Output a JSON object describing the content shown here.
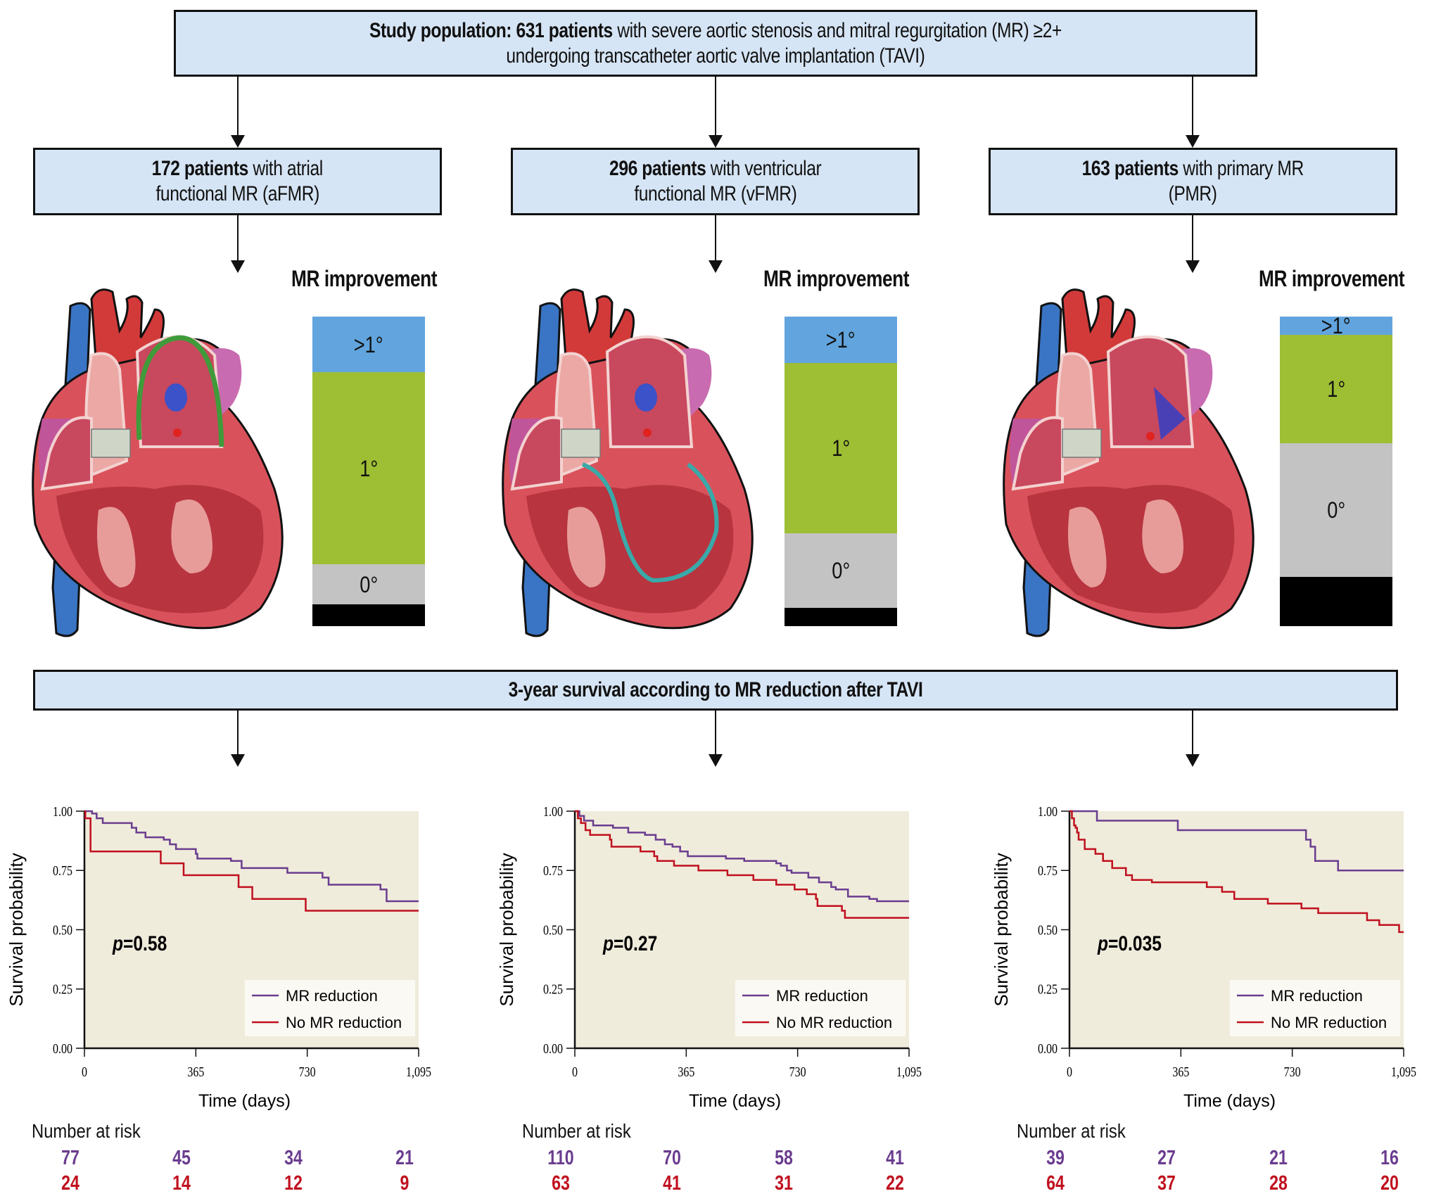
{
  "header": {
    "bold": "Study population: 631 patients",
    "rest_line1": " with severe aortic stenosis and mitral regurgitation (MR) ≥2+",
    "line2": "undergoing transcatheter aortic valve implantation (TAVI)"
  },
  "groups": [
    {
      "bold": "172 patients",
      "rest": " with atrial",
      "line2": "functional MR (aFMR)",
      "key": "aFMR"
    },
    {
      "bold": "296 patients",
      "rest": " with ventricular",
      "line2": "functional MR (vFMR)",
      "key": "vFMR"
    },
    {
      "bold": "163 patients",
      "rest": " with primary MR",
      "line2": "(PMR)",
      "key": "PMR"
    }
  ],
  "mr_improvement": {
    "title": "MR improvement",
    "colors": {
      "gt1": "#62a5de",
      "one": "#9ebe34",
      "zero": "#c3c3c3",
      "worse": "#000000"
    },
    "bars": [
      {
        "group": "aFMR",
        "segments": [
          {
            "label": ">1°",
            "fraction": 0.18,
            "color_key": "gt1"
          },
          {
            "label": "1°",
            "fraction": 0.62,
            "color_key": "one"
          },
          {
            "label": "0°",
            "fraction": 0.13,
            "color_key": "zero"
          },
          {
            "label": "",
            "fraction": 0.07,
            "color_key": "worse"
          }
        ]
      },
      {
        "group": "vFMR",
        "segments": [
          {
            "label": ">1°",
            "fraction": 0.15,
            "color_key": "gt1"
          },
          {
            "label": "1°",
            "fraction": 0.55,
            "color_key": "one"
          },
          {
            "label": "0°",
            "fraction": 0.24,
            "color_key": "zero"
          },
          {
            "label": "",
            "fraction": 0.06,
            "color_key": "worse"
          }
        ]
      },
      {
        "group": "PMR",
        "segments": [
          {
            "label": ">1°",
            "fraction": 0.06,
            "color_key": "gt1"
          },
          {
            "label": "1°",
            "fraction": 0.35,
            "color_key": "one"
          },
          {
            "label": "0°",
            "fraction": 0.43,
            "color_key": "zero"
          },
          {
            "label": "",
            "fraction": 0.16,
            "color_key": "worse"
          }
        ]
      }
    ]
  },
  "survival_header": "3-year survival according to MR reduction after TAVI",
  "chart_data": [
    {
      "type": "line",
      "group": "aFMR",
      "ylabel": "Survival probability",
      "xlabel": "Time (days)",
      "xlim": [
        0,
        1095
      ],
      "ylim": [
        0,
        1
      ],
      "xticks": [
        "0",
        "365",
        "730",
        "1,095"
      ],
      "xtick_values": [
        0,
        365,
        730,
        1095
      ],
      "yticks": [
        "0.00",
        "0.25",
        "0.50",
        "0.75",
        "1.00"
      ],
      "ytick_values": [
        0,
        0.25,
        0.5,
        0.75,
        1
      ],
      "annotation": {
        "p_label": "p",
        "p_value": "=0.58"
      },
      "legend": {
        "position": "bottom-right",
        "entries": [
          "MR reduction",
          "No MR reduction"
        ]
      },
      "series": [
        {
          "name": "MR reduction",
          "color": "#6a3d8f",
          "steps": [
            [
              0,
              1.0
            ],
            [
              25,
              0.99
            ],
            [
              40,
              0.97
            ],
            [
              60,
              0.95
            ],
            [
              155,
              0.93
            ],
            [
              170,
              0.91
            ],
            [
              200,
              0.89
            ],
            [
              260,
              0.88
            ],
            [
              280,
              0.86
            ],
            [
              300,
              0.84
            ],
            [
              365,
              0.82
            ],
            [
              370,
              0.8
            ],
            [
              480,
              0.79
            ],
            [
              515,
              0.76
            ],
            [
              665,
              0.74
            ],
            [
              780,
              0.72
            ],
            [
              800,
              0.69
            ],
            [
              970,
              0.67
            ],
            [
              990,
              0.62
            ],
            [
              1095,
              0.62
            ]
          ]
        },
        {
          "name": "No MR reduction",
          "color": "#c0101e",
          "steps": [
            [
              0,
              1.0
            ],
            [
              3,
              0.97
            ],
            [
              20,
              0.83
            ],
            [
              250,
              0.78
            ],
            [
              325,
              0.73
            ],
            [
              505,
              0.68
            ],
            [
              550,
              0.63
            ],
            [
              725,
              0.58
            ],
            [
              1095,
              0.58
            ]
          ]
        }
      ],
      "risk_table": {
        "title": "Number at risk",
        "rows": [
          {
            "name": "MR reduction",
            "color": "#6a3d8f",
            "values": [
              "77",
              "45",
              "34",
              "21"
            ]
          },
          {
            "name": "No MR reduction",
            "color": "#c0101e",
            "values": [
              "24",
              "14",
              "12",
              "9"
            ]
          }
        ]
      }
    },
    {
      "type": "line",
      "group": "vFMR",
      "ylabel": "Survival probability",
      "xlabel": "Time (days)",
      "xlim": [
        0,
        1095
      ],
      "ylim": [
        0,
        1
      ],
      "xticks": [
        "0",
        "365",
        "730",
        "1,095"
      ],
      "xtick_values": [
        0,
        365,
        730,
        1095
      ],
      "yticks": [
        "0.00",
        "0.25",
        "0.50",
        "0.75",
        "1.00"
      ],
      "ytick_values": [
        0,
        0.25,
        0.5,
        0.75,
        1
      ],
      "annotation": {
        "p_label": "p",
        "p_value": "=0.27"
      },
      "legend": {
        "position": "bottom-right",
        "entries": [
          "MR reduction",
          "No MR reduction"
        ]
      },
      "series": [
        {
          "name": "MR reduction",
          "color": "#6a3d8f",
          "steps": [
            [
              0,
              1.0
            ],
            [
              15,
              0.98
            ],
            [
              30,
              0.96
            ],
            [
              60,
              0.94
            ],
            [
              125,
              0.93
            ],
            [
              175,
              0.91
            ],
            [
              230,
              0.9
            ],
            [
              265,
              0.88
            ],
            [
              295,
              0.86
            ],
            [
              320,
              0.85
            ],
            [
              345,
              0.83
            ],
            [
              370,
              0.81
            ],
            [
              495,
              0.8
            ],
            [
              555,
              0.79
            ],
            [
              660,
              0.78
            ],
            [
              675,
              0.77
            ],
            [
              695,
              0.75
            ],
            [
              710,
              0.74
            ],
            [
              765,
              0.72
            ],
            [
              800,
              0.7
            ],
            [
              840,
              0.68
            ],
            [
              855,
              0.67
            ],
            [
              895,
              0.64
            ],
            [
              965,
              0.63
            ],
            [
              990,
              0.62
            ],
            [
              1095,
              0.62
            ]
          ]
        },
        {
          "name": "No MR reduction",
          "color": "#c0101e",
          "steps": [
            [
              0,
              1.0
            ],
            [
              10,
              0.97
            ],
            [
              20,
              0.95
            ],
            [
              35,
              0.92
            ],
            [
              50,
              0.9
            ],
            [
              115,
              0.88
            ],
            [
              120,
              0.85
            ],
            [
              215,
              0.83
            ],
            [
              260,
              0.81
            ],
            [
              270,
              0.79
            ],
            [
              325,
              0.77
            ],
            [
              405,
              0.75
            ],
            [
              500,
              0.73
            ],
            [
              585,
              0.71
            ],
            [
              660,
              0.69
            ],
            [
              720,
              0.67
            ],
            [
              760,
              0.65
            ],
            [
              790,
              0.63
            ],
            [
              795,
              0.6
            ],
            [
              875,
              0.58
            ],
            [
              885,
              0.55
            ],
            [
              1095,
              0.55
            ]
          ]
        }
      ],
      "risk_table": {
        "title": "Number at risk",
        "rows": [
          {
            "name": "MR reduction",
            "color": "#6a3d8f",
            "values": [
              "110",
              "70",
              "58",
              "41"
            ]
          },
          {
            "name": "No MR reduction",
            "color": "#c0101e",
            "values": [
              "63",
              "41",
              "31",
              "22"
            ]
          }
        ]
      }
    },
    {
      "type": "line",
      "group": "PMR",
      "ylabel": "Survival probability",
      "xlabel": "Time (days)",
      "xlim": [
        0,
        1095
      ],
      "ylim": [
        0,
        1
      ],
      "xticks": [
        "0",
        "365",
        "730",
        "1,095"
      ],
      "xtick_values": [
        0,
        365,
        730,
        1095
      ],
      "yticks": [
        "0.00",
        "0.25",
        "0.50",
        "0.75",
        "1.00"
      ],
      "ytick_values": [
        0,
        0.25,
        0.5,
        0.75,
        1
      ],
      "annotation": {
        "p_label": "p",
        "p_value": "=0.035"
      },
      "legend": {
        "position": "bottom-right",
        "entries": [
          "MR reduction",
          "No MR reduction"
        ]
      },
      "series": [
        {
          "name": "MR reduction",
          "color": "#6a3d8f",
          "steps": [
            [
              0,
              1.0
            ],
            [
              90,
              0.96
            ],
            [
              355,
              0.92
            ],
            [
              775,
              0.88
            ],
            [
              790,
              0.85
            ],
            [
              805,
              0.79
            ],
            [
              880,
              0.75
            ],
            [
              1095,
              0.75
            ]
          ]
        },
        {
          "name": "No MR reduction",
          "color": "#c0101e",
          "steps": [
            [
              0,
              1.0
            ],
            [
              8,
              0.97
            ],
            [
              15,
              0.94
            ],
            [
              20,
              0.93
            ],
            [
              25,
              0.91
            ],
            [
              30,
              0.88
            ],
            [
              50,
              0.84
            ],
            [
              85,
              0.82
            ],
            [
              110,
              0.79
            ],
            [
              140,
              0.76
            ],
            [
              185,
              0.73
            ],
            [
              205,
              0.71
            ],
            [
              270,
              0.7
            ],
            [
              450,
              0.68
            ],
            [
              500,
              0.66
            ],
            [
              540,
              0.63
            ],
            [
              650,
              0.61
            ],
            [
              760,
              0.59
            ],
            [
              815,
              0.57
            ],
            [
              975,
              0.54
            ],
            [
              1015,
              0.52
            ],
            [
              1080,
              0.49
            ],
            [
              1095,
              0.49
            ]
          ]
        }
      ],
      "risk_table": {
        "title": "Number at risk",
        "rows": [
          {
            "name": "MR reduction",
            "color": "#6a3d8f",
            "values": [
              "39",
              "27",
              "21",
              "16"
            ]
          },
          {
            "name": "No MR reduction",
            "color": "#c0101e",
            "values": [
              "64",
              "37",
              "28",
              "20"
            ]
          }
        ]
      }
    }
  ]
}
